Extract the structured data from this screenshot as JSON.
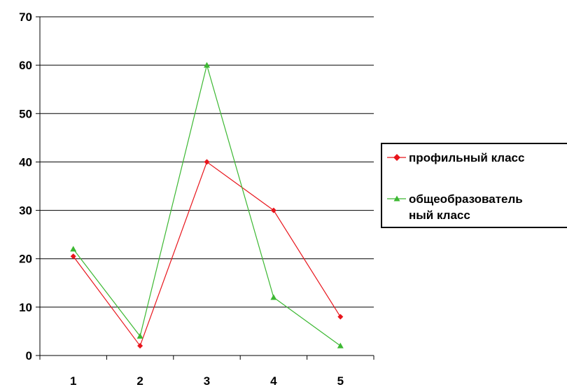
{
  "chart_data": {
    "type": "line",
    "x": [
      "1",
      "2",
      "3",
      "4",
      "5"
    ],
    "ylim": [
      0,
      70
    ],
    "yticks": [
      "0",
      "10",
      "20",
      "30",
      "40",
      "50",
      "60",
      "70"
    ],
    "grid": true,
    "legend_position": "right",
    "series": [
      {
        "name": "профильный класс",
        "values": [
          20.5,
          2,
          40,
          30,
          8
        ],
        "color": "#e8141b",
        "marker": "diamond"
      },
      {
        "name_lines": [
          "общеобразователь",
          "ный класс"
        ],
        "values": [
          22,
          4,
          60,
          12,
          2
        ],
        "color": "#3cb832",
        "marker": "triangle"
      }
    ]
  }
}
